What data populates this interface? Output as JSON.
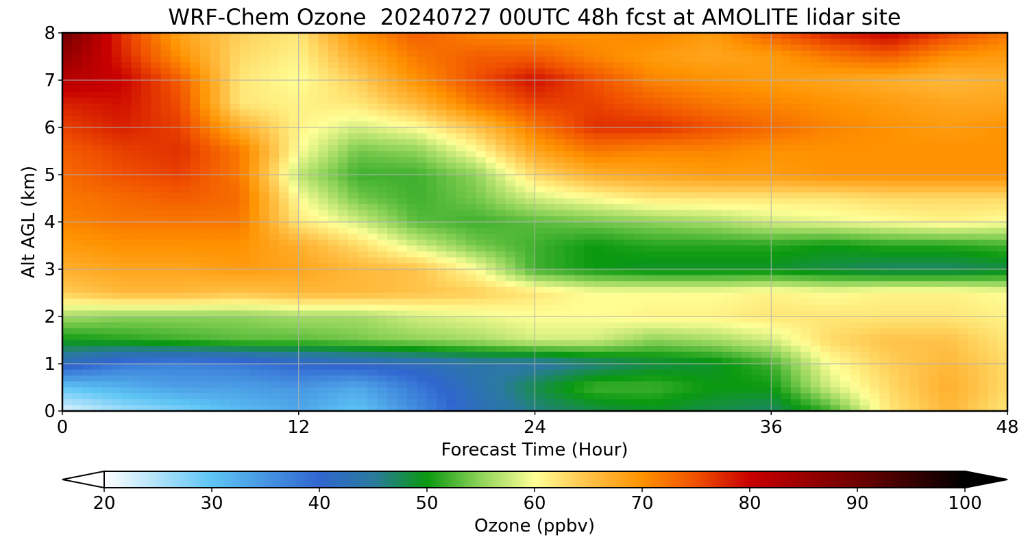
{
  "chart_data": {
    "type": "heatmap",
    "title": "WRF-Chem Ozone  20240727 00UTC 48h fcst at AMOLITE lidar site",
    "xlabel": "Forecast Time (Hour)",
    "ylabel": "Alt AGL (km)",
    "xlim": [
      0,
      48
    ],
    "ylim": [
      0,
      8
    ],
    "x_ticks": [
      "0",
      "12",
      "24",
      "36",
      "48"
    ],
    "y_ticks": [
      "0",
      "1",
      "2",
      "3",
      "4",
      "5",
      "6",
      "7",
      "8"
    ],
    "grid": true,
    "x": [
      0,
      3,
      6,
      9,
      12,
      15,
      18,
      21,
      24,
      27,
      30,
      33,
      36,
      39,
      42,
      45,
      48
    ],
    "y": [
      0,
      0.5,
      1,
      1.5,
      2,
      2.5,
      3,
      3.5,
      4,
      4.5,
      5,
      5.5,
      6,
      6.5,
      7,
      7.5,
      8
    ],
    "z": [
      [
        22,
        26,
        28,
        31,
        33,
        30,
        36,
        42,
        46,
        48,
        49,
        48,
        47,
        52,
        62,
        66,
        62
      ],
      [
        30,
        32,
        34,
        34,
        35,
        33,
        38,
        43,
        48,
        52,
        52,
        50,
        50,
        58,
        63,
        67,
        63
      ],
      [
        42,
        38,
        37,
        38,
        40,
        41,
        42,
        44,
        44,
        46,
        48,
        49,
        52,
        60,
        64,
        66,
        63
      ],
      [
        50,
        51,
        52,
        53,
        53,
        54,
        55,
        56,
        58,
        58,
        55,
        56,
        58,
        63,
        65,
        65,
        62
      ],
      [
        56,
        55,
        55,
        55,
        56,
        56,
        58,
        59,
        60,
        60,
        61,
        61,
        62,
        62,
        62,
        62,
        61
      ],
      [
        64,
        66,
        66,
        65,
        66,
        66,
        65,
        64,
        62,
        60,
        60,
        60,
        61,
        60,
        61,
        61,
        60
      ],
      [
        67,
        68,
        68,
        69,
        68,
        66,
        65,
        60,
        52,
        50,
        49,
        49,
        49,
        48,
        47,
        47,
        48
      ],
      [
        69,
        70,
        70,
        70,
        67,
        63,
        58,
        54,
        52,
        50,
        51,
        51,
        51,
        50,
        51,
        51,
        52
      ],
      [
        71,
        72,
        72,
        72,
        62,
        58,
        53,
        52,
        53,
        54,
        55,
        56,
        58,
        59,
        60,
        61,
        60
      ],
      [
        72,
        73,
        74,
        73,
        60,
        54,
        52,
        54,
        58,
        60,
        62,
        62,
        62,
        62,
        63,
        63,
        63
      ],
      [
        73,
        75,
        76,
        72,
        57,
        52,
        52,
        55,
        63,
        67,
        68,
        69,
        69,
        70,
        70,
        70,
        70
      ],
      [
        74,
        76,
        77,
        72,
        60,
        54,
        55,
        60,
        68,
        72,
        71,
        71,
        70,
        70,
        70,
        70,
        70
      ],
      [
        76,
        78,
        76,
        67,
        61,
        58,
        60,
        65,
        72,
        77,
        77,
        75,
        73,
        71,
        70,
        69,
        70
      ],
      [
        78,
        79,
        75,
        62,
        61,
        62,
        66,
        72,
        76,
        76,
        74,
        72,
        71,
        70,
        69,
        68,
        68
      ],
      [
        82,
        80,
        74,
        62,
        60,
        64,
        70,
        75,
        79,
        75,
        71,
        70,
        69,
        68,
        67,
        66,
        67
      ],
      [
        86,
        78,
        70,
        63,
        61,
        67,
        72,
        74,
        74,
        71,
        69,
        68,
        69,
        72,
        74,
        70,
        69
      ],
      [
        90,
        77,
        68,
        64,
        62,
        70,
        74,
        71,
        70,
        70,
        71,
        69,
        74,
        78,
        80,
        76,
        72
      ]
    ],
    "colorbar": {
      "label": "Ozone  (ppbv)",
      "min": 20,
      "max": 100,
      "extend": "both",
      "ticks": [
        "20",
        "30",
        "40",
        "50",
        "60",
        "70",
        "80",
        "90",
        "100"
      ],
      "color_stops": [
        {
          "value": 20,
          "color": "#ffffff"
        },
        {
          "value": 30,
          "color": "#5ec5f5"
        },
        {
          "value": 40,
          "color": "#3066cf"
        },
        {
          "value": 45,
          "color": "#2a7a9e"
        },
        {
          "value": 50,
          "color": "#0a9910"
        },
        {
          "value": 55,
          "color": "#8fd35a"
        },
        {
          "value": 60,
          "color": "#ffff96"
        },
        {
          "value": 65,
          "color": "#ffc248"
        },
        {
          "value": 70,
          "color": "#ff9200"
        },
        {
          "value": 75,
          "color": "#f05000"
        },
        {
          "value": 80,
          "color": "#c80000"
        },
        {
          "value": 90,
          "color": "#6e0000"
        },
        {
          "value": 100,
          "color": "#000000"
        }
      ]
    }
  }
}
